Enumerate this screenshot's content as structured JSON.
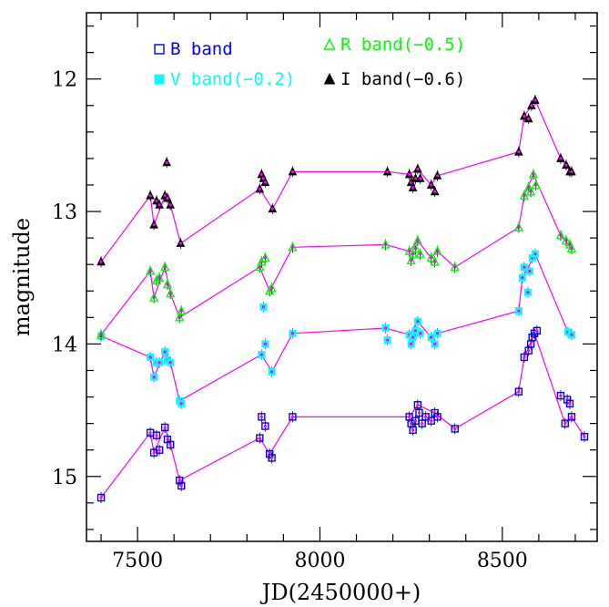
{
  "chart_data": {
    "type": "scatter",
    "xlabel": "JD(2450000+)",
    "ylabel": "magnitude",
    "xlim": [
      7360,
      8760
    ],
    "ylim": [
      15.49,
      11.5
    ],
    "y_inverted": true,
    "x_ticks": [
      7500,
      8000,
      8500
    ],
    "y_ticks": [
      12,
      13,
      14,
      15
    ],
    "grid": false,
    "legend_placement": "top",
    "connector_color": "#ff00ff",
    "series": [
      {
        "name": "B band",
        "marker": "open-square",
        "color": "#0000ff",
        "x": [
          7400,
          7535,
          7545,
          7552,
          7560,
          7575,
          7582,
          7590,
          7615,
          7620,
          7835,
          7840,
          7850,
          7862,
          7868,
          7925,
          8245,
          8250,
          8255,
          8262,
          8268,
          8272,
          8280,
          8290,
          8305,
          8315,
          8322,
          8370,
          8545,
          8560,
          8572,
          8578,
          8582,
          8588,
          8595,
          8660,
          8672,
          8678,
          8685,
          8690,
          8725
        ],
        "y": [
          15.16,
          14.67,
          14.82,
          14.69,
          14.8,
          14.63,
          14.72,
          14.76,
          15.03,
          15.07,
          14.71,
          14.55,
          14.62,
          14.83,
          14.86,
          14.55,
          14.55,
          14.6,
          14.65,
          14.58,
          14.46,
          14.52,
          14.6,
          14.55,
          14.58,
          14.52,
          14.55,
          14.64,
          14.36,
          14.1,
          14.05,
          14.0,
          13.95,
          13.92,
          13.9,
          14.39,
          14.6,
          14.42,
          14.45,
          14.55,
          14.7
        ],
        "connected": [
          true,
          true,
          true,
          false,
          false,
          true,
          false,
          true,
          true,
          false,
          true,
          false,
          false,
          true,
          false,
          true,
          true,
          false,
          false,
          false,
          true,
          false,
          false,
          false,
          false,
          true,
          false,
          true,
          true,
          true,
          false,
          false,
          false,
          true,
          false,
          false,
          true,
          false,
          false,
          true,
          true
        ]
      },
      {
        "name": "V band(−0.2)",
        "marker": "filled-square",
        "color": "#00ffff",
        "x": [
          7400,
          7535,
          7545,
          7552,
          7560,
          7575,
          7582,
          7590,
          7615,
          7620,
          7840,
          7845,
          7850,
          7868,
          7925,
          8180,
          8185,
          8245,
          8250,
          8255,
          8262,
          8268,
          8275,
          8305,
          8315,
          8322,
          8545,
          8555,
          8560,
          8570,
          8575,
          8582,
          8590,
          8680,
          8690
        ],
        "y": [
          13.94,
          14.1,
          14.25,
          14.14,
          14.14,
          14.06,
          14.12,
          14.14,
          14.43,
          14.45,
          14.08,
          13.72,
          14.0,
          14.21,
          13.92,
          13.88,
          13.97,
          13.93,
          14.0,
          13.95,
          13.9,
          13.83,
          13.92,
          13.95,
          14.0,
          13.92,
          13.75,
          13.5,
          13.42,
          13.61,
          13.45,
          13.35,
          13.32,
          13.91,
          13.93
        ],
        "connected": [
          true,
          true,
          true,
          false,
          false,
          true,
          false,
          true,
          true,
          false,
          true,
          false,
          false,
          true,
          true,
          true,
          false,
          true,
          false,
          false,
          false,
          true,
          false,
          true,
          false,
          true,
          true,
          true,
          false,
          false,
          false,
          false,
          true,
          true,
          false
        ]
      },
      {
        "name": "R band(−0.5)",
        "marker": "open-triangle",
        "color": "#00ff00",
        "x": [
          7400,
          7535,
          7545,
          7552,
          7560,
          7575,
          7582,
          7590,
          7615,
          7620,
          7835,
          7840,
          7850,
          7862,
          7868,
          7925,
          8180,
          8245,
          8250,
          8255,
          8262,
          8268,
          8275,
          8305,
          8315,
          8322,
          8370,
          8545,
          8560,
          8572,
          8578,
          8585,
          8592,
          8660,
          8675,
          8685,
          8690
        ],
        "y": [
          13.93,
          13.45,
          13.65,
          13.52,
          13.5,
          13.42,
          13.55,
          13.62,
          13.8,
          13.75,
          13.42,
          13.38,
          13.35,
          13.6,
          13.58,
          13.27,
          13.25,
          13.3,
          13.37,
          13.32,
          13.28,
          13.22,
          13.32,
          13.35,
          13.38,
          13.3,
          13.42,
          13.12,
          12.88,
          12.82,
          12.85,
          12.72,
          12.8,
          13.18,
          13.22,
          13.25,
          13.28
        ],
        "connected": [
          true,
          true,
          true,
          false,
          false,
          true,
          false,
          true,
          true,
          false,
          true,
          false,
          false,
          true,
          false,
          true,
          true,
          true,
          false,
          false,
          false,
          true,
          false,
          true,
          false,
          true,
          true,
          true,
          true,
          false,
          false,
          true,
          false,
          true,
          false,
          false,
          true
        ]
      },
      {
        "name": "I band(−0.6)",
        "marker": "filled-triangle",
        "color": "#000000",
        "x": [
          7400,
          7535,
          7545,
          7552,
          7560,
          7575,
          7580,
          7582,
          7590,
          7618,
          7835,
          7840,
          7845,
          7850,
          7870,
          7925,
          8185,
          8245,
          8250,
          8255,
          8262,
          8268,
          8275,
          8305,
          8315,
          8322,
          8545,
          8560,
          8572,
          8580,
          8590,
          8660,
          8675,
          8685,
          8690
        ],
        "y": [
          13.38,
          12.88,
          13.1,
          12.92,
          12.95,
          12.88,
          12.63,
          12.9,
          12.95,
          13.24,
          12.83,
          12.72,
          12.75,
          12.78,
          12.98,
          12.7,
          12.7,
          12.72,
          12.78,
          12.82,
          12.75,
          12.68,
          12.75,
          12.8,
          12.85,
          12.73,
          12.55,
          12.28,
          12.3,
          12.2,
          12.16,
          12.6,
          12.65,
          12.7,
          12.7
        ],
        "connected": [
          true,
          true,
          true,
          false,
          false,
          true,
          false,
          false,
          true,
          true,
          true,
          false,
          false,
          false,
          true,
          true,
          true,
          true,
          false,
          false,
          false,
          true,
          false,
          true,
          false,
          true,
          true,
          true,
          false,
          false,
          true,
          true,
          false,
          false,
          true
        ]
      }
    ]
  }
}
